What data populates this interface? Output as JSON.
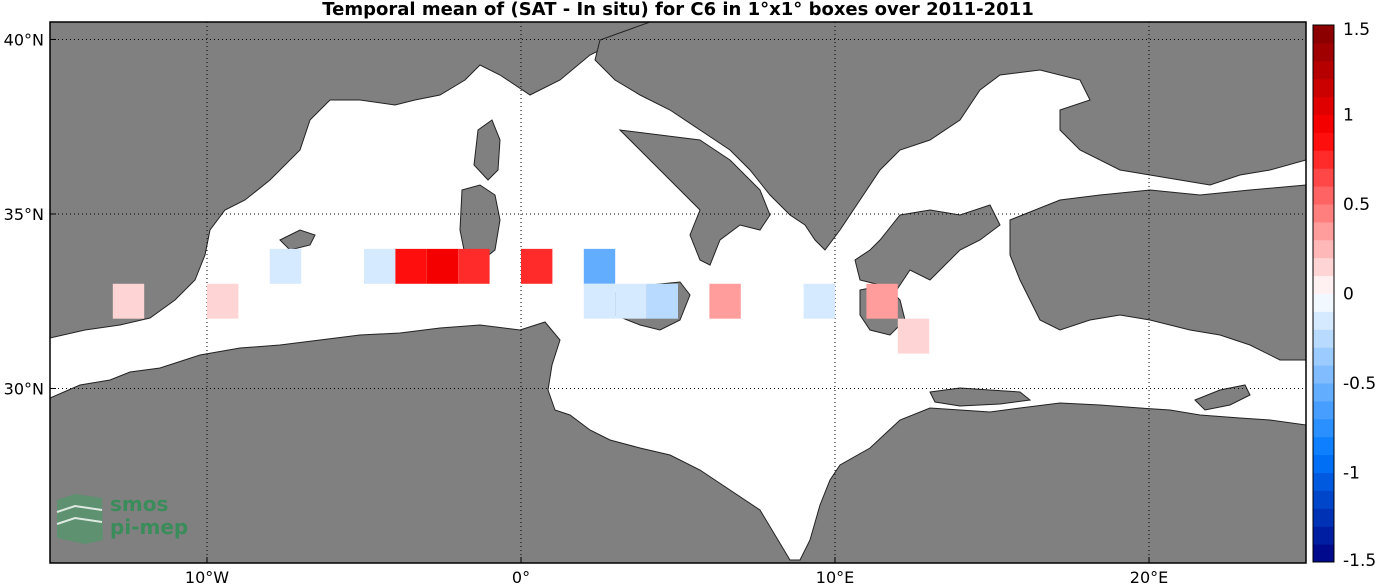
{
  "title": "Temporal mean of (SAT - In situ) for C6 in 1°x1° boxes over 2011-2011",
  "map": {
    "lon_range": [
      -15,
      25
    ],
    "lat_range": [
      25,
      40.5
    ],
    "sea_color": "#ffffff",
    "land_color": "#808080",
    "lat_ticks": [
      {
        "value": 30,
        "label": "30°N"
      },
      {
        "value": 35,
        "label": "35°N"
      },
      {
        "value": 40,
        "label": "40°N"
      }
    ],
    "lon_ticks": [
      {
        "value": -10,
        "label": "10°W"
      },
      {
        "value": 0,
        "label": "0°"
      },
      {
        "value": 10,
        "label": "10°E"
      },
      {
        "value": 20,
        "label": "20°E"
      }
    ],
    "cells": [
      {
        "lon": -12.5,
        "lat": 32.5,
        "value": 0.1
      },
      {
        "lon": -9.5,
        "lat": 32.5,
        "value": 0.1
      },
      {
        "lon": -7.5,
        "lat": 33.5,
        "value": -0.1
      },
      {
        "lon": -4.5,
        "lat": 33.5,
        "value": -0.1
      },
      {
        "lon": -3.5,
        "lat": 33.5,
        "value": 0.85
      },
      {
        "lon": -2.5,
        "lat": 33.5,
        "value": 0.95
      },
      {
        "lon": -1.5,
        "lat": 33.5,
        "value": 0.8
      },
      {
        "lon": 0.5,
        "lat": 33.5,
        "value": 0.75
      },
      {
        "lon": 2.5,
        "lat": 33.5,
        "value": -0.55
      },
      {
        "lon": 2.5,
        "lat": 32.5,
        "value": -0.2
      },
      {
        "lon": 3.5,
        "lat": 32.5,
        "value": -0.15
      },
      {
        "lon": 4.5,
        "lat": 32.5,
        "value": -0.25
      },
      {
        "lon": 6.5,
        "lat": 32.5,
        "value": 0.4
      },
      {
        "lon": 9.5,
        "lat": 32.5,
        "value": -0.15
      },
      {
        "lon": 11.5,
        "lat": 32.5,
        "value": 0.3
      },
      {
        "lon": 12.5,
        "lat": 31.5,
        "value": 0.1
      }
    ]
  },
  "colorbar": {
    "min": -1.5,
    "max": 1.5,
    "ticks": [
      {
        "value": 1.5,
        "label": "1.5"
      },
      {
        "value": 1,
        "label": "1"
      },
      {
        "value": 0.5,
        "label": "0.5"
      },
      {
        "value": 0,
        "label": "0"
      },
      {
        "value": -0.5,
        "label": "-0.5"
      },
      {
        "value": -1,
        "label": "-1"
      },
      {
        "value": -1.5,
        "label": "-1.5"
      }
    ]
  },
  "logo": {
    "line1": "smos",
    "line2": "pi-mep"
  }
}
